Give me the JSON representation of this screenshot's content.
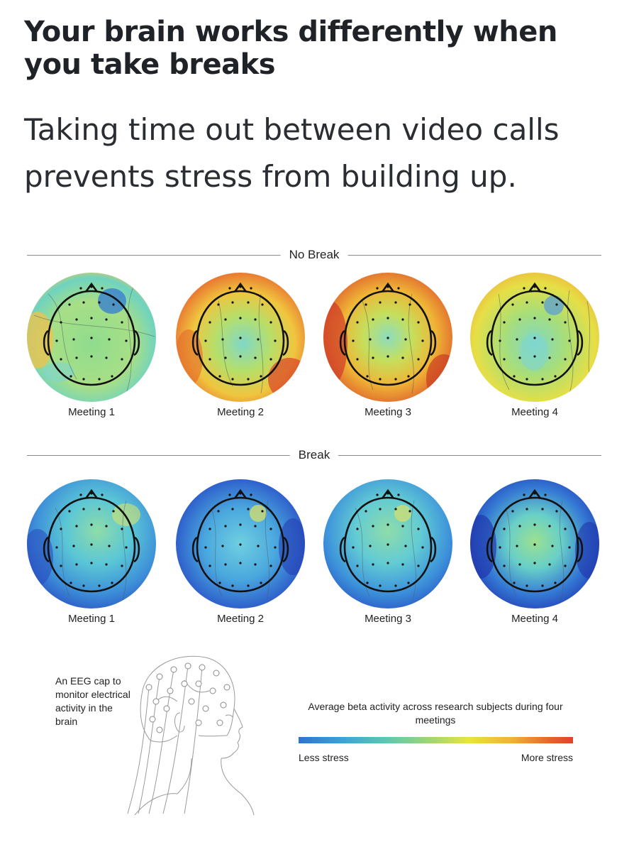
{
  "header": {
    "title": "Your brain works differently when you take breaks",
    "subtitle": "Taking time out between video calls prevents stress from building up."
  },
  "sections": [
    {
      "label": "No Break",
      "meetings": [
        {
          "label": "Meeting 1",
          "stress_level": 0.35
        },
        {
          "label": "Meeting 2",
          "stress_level": 0.6
        },
        {
          "label": "Meeting 3",
          "stress_level": 0.7
        },
        {
          "label": "Meeting 4",
          "stress_level": 0.55
        }
      ]
    },
    {
      "label": "Break",
      "meetings": [
        {
          "label": "Meeting 1",
          "stress_level": 0.2
        },
        {
          "label": "Meeting 2",
          "stress_level": 0.15
        },
        {
          "label": "Meeting 3",
          "stress_level": 0.2
        },
        {
          "label": "Meeting 4",
          "stress_level": 0.15
        }
      ]
    }
  ],
  "eeg_caption": "An EEG cap to monitor electrical activity in the brain",
  "legend": {
    "title": "Average beta activity across research subjects during four meetings",
    "low_label": "Less stress",
    "high_label": "More stress",
    "colors": [
      "#2f74cf",
      "#3aa3d6",
      "#5cc8b0",
      "#a8d86a",
      "#e8e53a",
      "#f0b130",
      "#e9602a",
      "#e4412a"
    ]
  }
}
